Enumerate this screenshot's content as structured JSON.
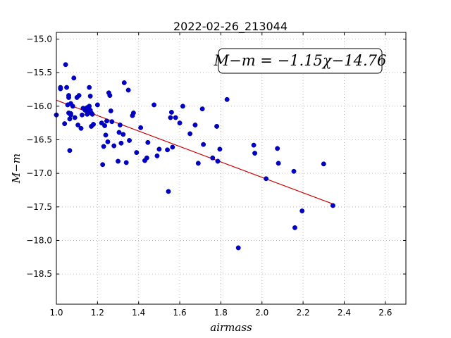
{
  "chart_data": {
    "type": "scatter",
    "title": "2022-02-26_213044",
    "xlabel": "airmass",
    "ylabel": "M−m",
    "xlim": [
      1.0,
      2.7
    ],
    "ylim": [
      -14.9,
      -18.95
    ],
    "y_inverted": true,
    "grid": true,
    "xticks": [
      1.0,
      1.2,
      1.4,
      1.6,
      1.8,
      2.0,
      2.2,
      2.4,
      2.6
    ],
    "xtick_labels": [
      "1.0",
      "1.2",
      "1.4",
      "1.6",
      "1.8",
      "2.0",
      "2.2",
      "2.4",
      "2.6"
    ],
    "yticks": [
      -15.0,
      -15.5,
      -16.0,
      -16.5,
      -17.0,
      -17.5,
      -18.0,
      -18.5
    ],
    "ytick_labels": [
      "−15.0",
      "−15.5",
      "−16.0",
      "−16.5",
      "−17.0",
      "−17.5",
      "−18.0",
      "−18.5"
    ],
    "annotation": "M−m = −1.15χ−14.76",
    "fit": {
      "slope": -1.15,
      "intercept": -14.76,
      "x_range": [
        1.0,
        2.35
      ],
      "color": "#cc0000"
    },
    "marker_color": "#0000cc",
    "points": [
      [
        1.0,
        -16.13
      ],
      [
        1.02,
        -15.72
      ],
      [
        1.02,
        -15.74
      ],
      [
        1.04,
        -16.26
      ],
      [
        1.045,
        -15.38
      ],
      [
        1.05,
        -15.72
      ],
      [
        1.055,
        -15.98
      ],
      [
        1.06,
        -15.84
      ],
      [
        1.06,
        -15.87
      ],
      [
        1.06,
        -16.1
      ],
      [
        1.065,
        -16.66
      ],
      [
        1.065,
        -16.19
      ],
      [
        1.07,
        -16.11
      ],
      [
        1.07,
        -16.13
      ],
      [
        1.07,
        -15.96
      ],
      [
        1.08,
        -16.0
      ],
      [
        1.085,
        -15.58
      ],
      [
        1.09,
        -16.17
      ],
      [
        1.1,
        -15.87
      ],
      [
        1.105,
        -16.28
      ],
      [
        1.11,
        -15.84
      ],
      [
        1.12,
        -16.33
      ],
      [
        1.125,
        -16.13
      ],
      [
        1.13,
        -16.03
      ],
      [
        1.14,
        -16.06
      ],
      [
        1.15,
        -16.02
      ],
      [
        1.15,
        -16.12
      ],
      [
        1.155,
        -16.08
      ],
      [
        1.16,
        -15.72
      ],
      [
        1.16,
        -16.0
      ],
      [
        1.165,
        -15.85
      ],
      [
        1.165,
        -16.06
      ],
      [
        1.17,
        -16.1
      ],
      [
        1.17,
        -16.3
      ],
      [
        1.175,
        -16.12
      ],
      [
        1.18,
        -16.27
      ],
      [
        1.2,
        -15.98
      ],
      [
        1.22,
        -16.25
      ],
      [
        1.225,
        -16.87
      ],
      [
        1.23,
        -16.6
      ],
      [
        1.235,
        -16.29
      ],
      [
        1.24,
        -16.43
      ],
      [
        1.245,
        -16.22
      ],
      [
        1.25,
        -16.53
      ],
      [
        1.255,
        -15.8
      ],
      [
        1.26,
        -15.84
      ],
      [
        1.265,
        -16.07
      ],
      [
        1.27,
        -16.23
      ],
      [
        1.28,
        -16.59
      ],
      [
        1.3,
        -16.82
      ],
      [
        1.305,
        -16.39
      ],
      [
        1.31,
        -16.28
      ],
      [
        1.315,
        -16.55
      ],
      [
        1.325,
        -16.42
      ],
      [
        1.33,
        -15.65
      ],
      [
        1.34,
        -16.84
      ],
      [
        1.35,
        -15.76
      ],
      [
        1.355,
        -16.51
      ],
      [
        1.37,
        -16.14
      ],
      [
        1.375,
        -16.1
      ],
      [
        1.39,
        -16.69
      ],
      [
        1.41,
        -16.32
      ],
      [
        1.43,
        -16.81
      ],
      [
        1.44,
        -16.77
      ],
      [
        1.445,
        -16.54
      ],
      [
        1.475,
        -15.98
      ],
      [
        1.49,
        -16.74
      ],
      [
        1.5,
        -16.64
      ],
      [
        1.54,
        -16.65
      ],
      [
        1.545,
        -17.27
      ],
      [
        1.555,
        -16.17
      ],
      [
        1.56,
        -16.09
      ],
      [
        1.565,
        -16.61
      ],
      [
        1.58,
        -16.17
      ],
      [
        1.6,
        -16.25
      ],
      [
        1.615,
        -16.0
      ],
      [
        1.65,
        -16.41
      ],
      [
        1.675,
        -16.28
      ],
      [
        1.69,
        -16.85
      ],
      [
        1.71,
        -16.04
      ],
      [
        1.715,
        -16.57
      ],
      [
        1.76,
        -16.77
      ],
      [
        1.78,
        -16.3
      ],
      [
        1.785,
        -16.82
      ],
      [
        1.795,
        -16.64
      ],
      [
        1.83,
        -15.9
      ],
      [
        1.885,
        -18.11
      ],
      [
        1.96,
        -16.58
      ],
      [
        1.965,
        -16.7
      ],
      [
        2.02,
        -17.08
      ],
      [
        2.075,
        -16.63
      ],
      [
        2.08,
        -16.85
      ],
      [
        2.155,
        -16.97
      ],
      [
        2.16,
        -17.81
      ],
      [
        2.195,
        -17.56
      ],
      [
        2.3,
        -16.86
      ],
      [
        2.345,
        -17.48
      ]
    ]
  }
}
